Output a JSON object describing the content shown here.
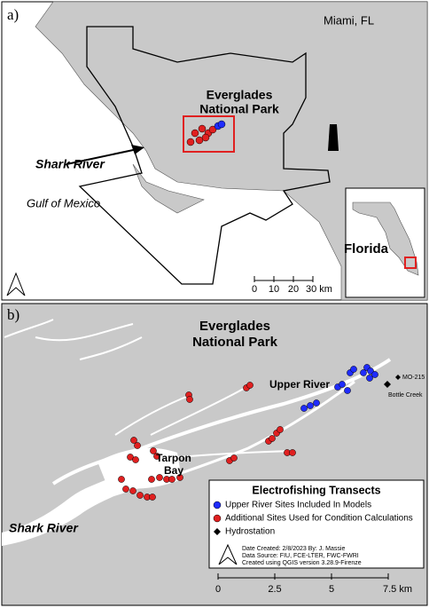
{
  "panel_a": {
    "label": "a)",
    "city": "Miami, FL",
    "park": [
      "Everglades",
      "National Park"
    ],
    "river": "Shark River",
    "sea": "Gulf of Mexico",
    "inset": "Florida",
    "scale": [
      "0",
      "10",
      "20",
      "30 km"
    ]
  },
  "panel_b": {
    "label": "b)",
    "park": [
      "Everglades",
      "National Park"
    ],
    "upper_river": "Upper River",
    "bay": [
      "Tarpon",
      "Bay"
    ],
    "river": "Shark River",
    "stations": [
      "MO-215",
      "Bottle Creek"
    ],
    "legend": {
      "title": "Electrofishing Transects",
      "items": [
        "Upper River Sites Included In Models",
        "Additional Sites Used for Condition Calculations",
        "Hydrostation"
      ]
    },
    "credits": [
      "Date Created: 2/8/2023     By: J. Massie",
      "Data Source: FIU, FCE-LTER, FWC-FWRI",
      "Created using QGIS version 3.28.9-Firenze"
    ],
    "scale": [
      "0",
      "2.5",
      "5",
      "7.5 km"
    ]
  }
}
